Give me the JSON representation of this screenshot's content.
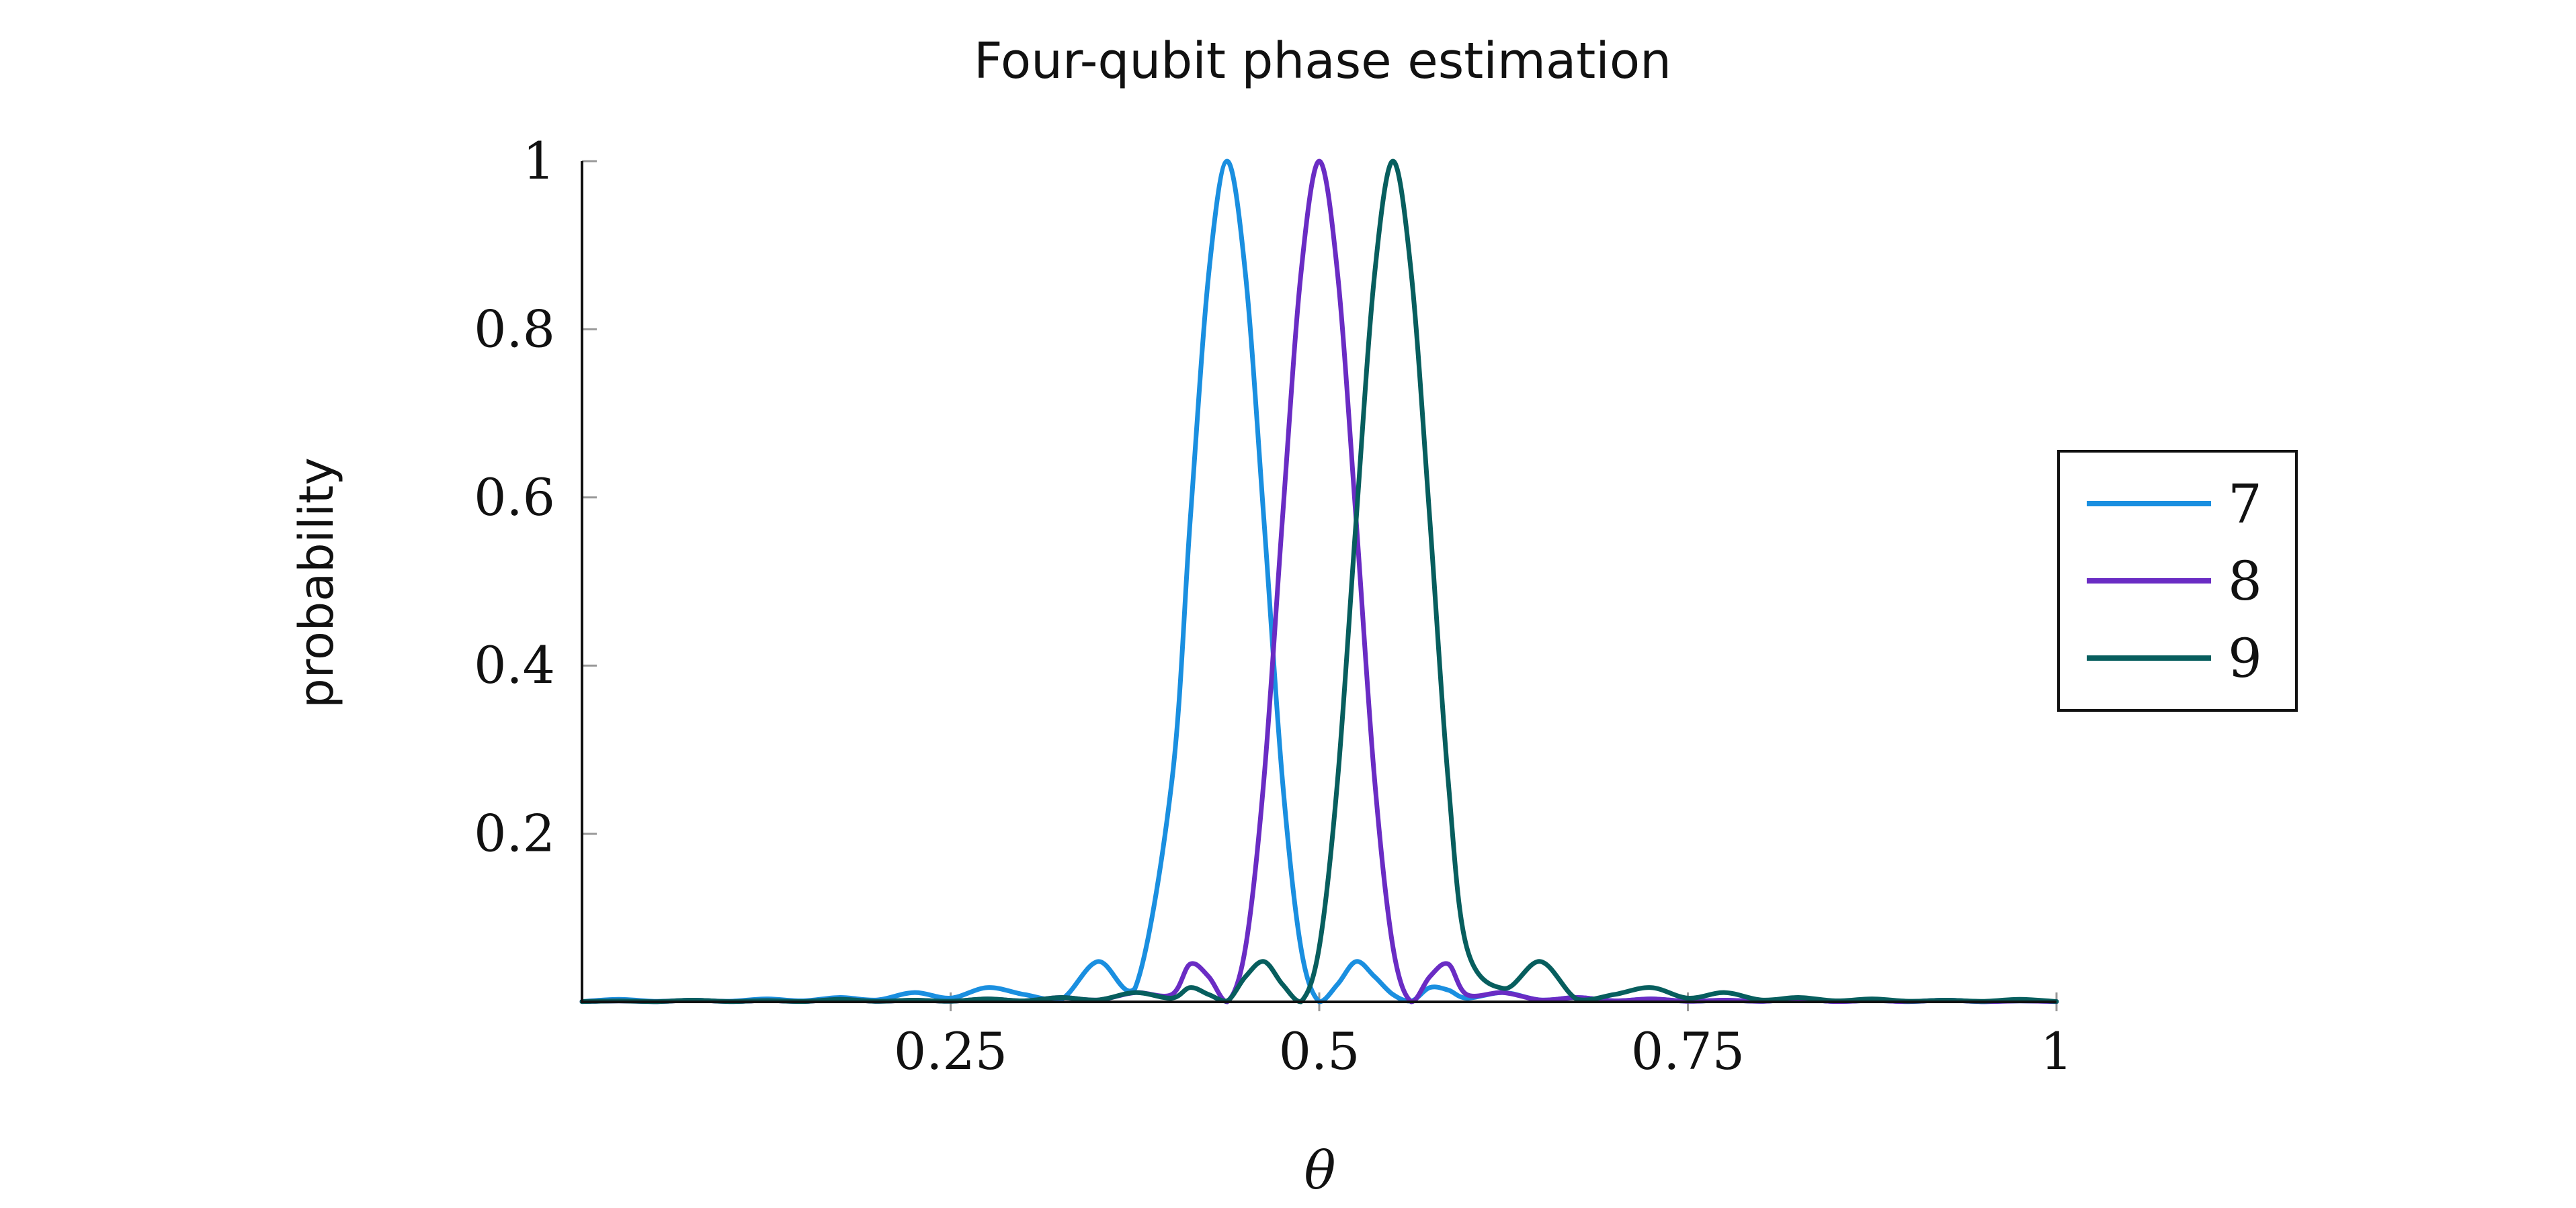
{
  "chart_data": {
    "type": "line",
    "title": "Four-qubit phase estimation",
    "xlabel": "θ",
    "ylabel": "probability",
    "xlim": [
      0,
      1
    ],
    "ylim": [
      0,
      1
    ],
    "x_ticks": [
      {
        "value": 0.25,
        "label": "0.25"
      },
      {
        "value": 0.5,
        "label": "0.5"
      },
      {
        "value": 0.75,
        "label": "0.75"
      },
      {
        "value": 1,
        "label": "1"
      }
    ],
    "y_ticks": [
      {
        "value": 0.2,
        "label": "0.2"
      },
      {
        "value": 0.4,
        "label": "0.4"
      },
      {
        "value": 0.6,
        "label": "0.6"
      },
      {
        "value": 0.8,
        "label": "0.8"
      },
      {
        "value": 1,
        "label": "1"
      }
    ],
    "grid": false,
    "legend_position": "right",
    "qubits": 4,
    "x": [
      0,
      0.025,
      0.05,
      0.075,
      0.1,
      0.125,
      0.15,
      0.175,
      0.2,
      0.225,
      0.25,
      0.275,
      0.3,
      0.325,
      0.35,
      0.375,
      0.4,
      0.4125,
      0.425,
      0.4375,
      0.45,
      0.4625,
      0.475,
      0.4875,
      0.5,
      0.5125,
      0.525,
      0.5375,
      0.55,
      0.5625,
      0.575,
      0.5875,
      0.6,
      0.625,
      0.65,
      0.675,
      0.7,
      0.725,
      0.75,
      0.775,
      0.8,
      0.825,
      0.85,
      0.875,
      0.9,
      0.925,
      0.95,
      0.975,
      1
    ],
    "series": [
      {
        "name": "7",
        "color": "#1a8fe0",
        "values": [
          0.0004,
          0.003,
          0.0006,
          0.002,
          0.0007,
          0.0035,
          0.0012,
          0.0052,
          0.0022,
          0.011,
          0.0045,
          0.017,
          0.0087,
          0.003,
          0.048,
          0.016,
          0.262,
          0.573,
          0.865,
          1.0,
          0.865,
          0.573,
          0.265,
          0.065,
          0.0,
          0.021,
          0.048,
          0.03,
          0.0087,
          0.001,
          0.017,
          0.014,
          0.0045,
          0.011,
          0.0022,
          0.0052,
          0.0012,
          0.0035,
          0.0007,
          0.002,
          0.0006,
          0.003,
          0.0004,
          0.0015,
          0.0003,
          0.002,
          0.0002,
          0.0011,
          0.0003
        ]
      },
      {
        "name": "8",
        "color": "#6a2cc4",
        "values": [
          0.0003,
          0.0011,
          0.0002,
          0.002,
          0.0003,
          0.0015,
          0.0004,
          0.003,
          0.0006,
          0.002,
          0.0007,
          0.0035,
          0.0012,
          0.0052,
          0.0022,
          0.011,
          0.0087,
          0.045,
          0.03,
          0.0,
          0.065,
          0.265,
          0.573,
          0.865,
          1.0,
          0.865,
          0.573,
          0.265,
          0.065,
          0.0,
          0.03,
          0.045,
          0.0087,
          0.011,
          0.0022,
          0.0052,
          0.0012,
          0.0035,
          0.0007,
          0.002,
          0.0006,
          0.003,
          0.0004,
          0.0015,
          0.0003,
          0.002,
          0.0002,
          0.0011,
          0.0003
        ]
      },
      {
        "name": "9",
        "color": "#075e5e",
        "values": [
          0.0003,
          0.0011,
          0.0002,
          0.002,
          0.0003,
          0.0015,
          0.0004,
          0.003,
          0.0006,
          0.002,
          0.0007,
          0.0035,
          0.0012,
          0.0052,
          0.0022,
          0.011,
          0.0045,
          0.017,
          0.0087,
          0.001,
          0.03,
          0.048,
          0.021,
          0.0,
          0.065,
          0.265,
          0.573,
          0.865,
          1.0,
          0.865,
          0.573,
          0.262,
          0.065,
          0.016,
          0.048,
          0.003,
          0.0087,
          0.017,
          0.0045,
          0.011,
          0.0022,
          0.0052,
          0.0012,
          0.0035,
          0.0007,
          0.002,
          0.0006,
          0.003,
          0.0004
        ]
      }
    ]
  }
}
